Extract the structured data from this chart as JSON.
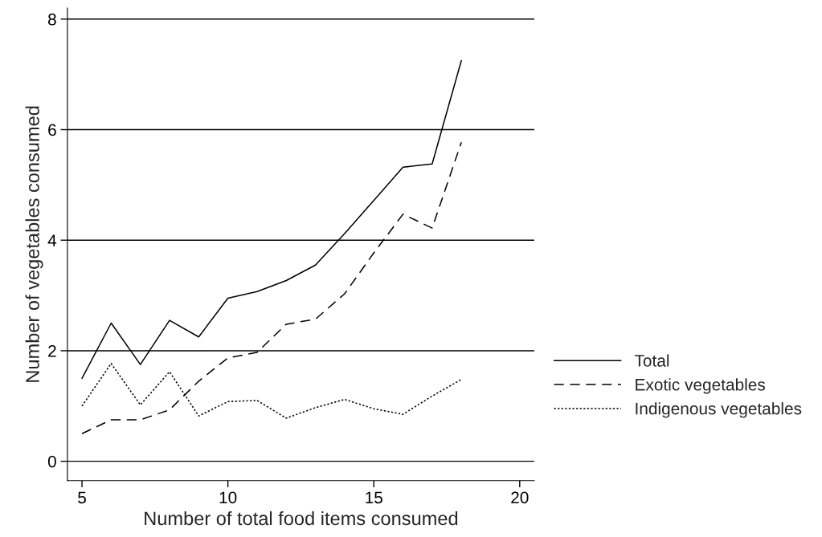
{
  "chart_data": {
    "type": "line",
    "xlabel": "Number of total food items consumed",
    "ylabel": "Number of vegetables consumed",
    "x": [
      5,
      6,
      7,
      8,
      9,
      10,
      11,
      12,
      13,
      14,
      15,
      16,
      17,
      18
    ],
    "series": [
      {
        "name": "Total",
        "color": "#000000",
        "line_style": "solid",
        "values": [
          1.5,
          2.5,
          1.75,
          2.55,
          2.25,
          2.95,
          3.07,
          3.27,
          3.55,
          4.12,
          4.72,
          5.32,
          5.38,
          7.25
        ]
      },
      {
        "name": "Exotic vegetables",
        "color": "#000000",
        "line_style": "dashed",
        "values": [
          0.5,
          0.75,
          0.75,
          0.93,
          1.45,
          1.87,
          1.97,
          2.48,
          2.57,
          3.03,
          3.77,
          4.47,
          4.22,
          5.77
        ]
      },
      {
        "name": "Indigenous vegetables",
        "color": "#000000",
        "line_style": "dotted",
        "values": [
          1.0,
          1.77,
          1.02,
          1.62,
          0.82,
          1.08,
          1.1,
          0.78,
          0.97,
          1.12,
          0.95,
          0.85,
          1.18,
          1.48
        ]
      }
    ],
    "xlim": [
      4.5,
      20.5
    ],
    "ylim": [
      -0.35,
      8.2
    ],
    "xticks": [
      5,
      10,
      15,
      20
    ],
    "yticks": [
      0,
      2,
      4,
      6,
      8
    ],
    "grid": "y",
    "legend": "right"
  }
}
